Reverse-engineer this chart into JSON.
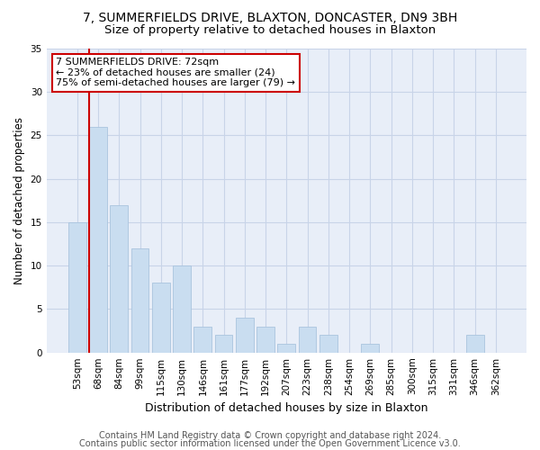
{
  "title1": "7, SUMMERFIELDS DRIVE, BLAXTON, DONCASTER, DN9 3BH",
  "title2": "Size of property relative to detached houses in Blaxton",
  "xlabel": "Distribution of detached houses by size in Blaxton",
  "ylabel": "Number of detached properties",
  "categories": [
    "53sqm",
    "68sqm",
    "84sqm",
    "99sqm",
    "115sqm",
    "130sqm",
    "146sqm",
    "161sqm",
    "177sqm",
    "192sqm",
    "207sqm",
    "223sqm",
    "238sqm",
    "254sqm",
    "269sqm",
    "285sqm",
    "300sqm",
    "315sqm",
    "331sqm",
    "346sqm",
    "362sqm"
  ],
  "values": [
    15,
    26,
    17,
    12,
    8,
    10,
    3,
    2,
    4,
    3,
    1,
    3,
    2,
    0,
    1,
    0,
    0,
    0,
    0,
    2,
    0
  ],
  "bar_color": "#c9ddf0",
  "bar_edge_color": "#aac4de",
  "subject_bar_index": 1,
  "subject_line_color": "#cc0000",
  "ylim": [
    0,
    35
  ],
  "yticks": [
    0,
    5,
    10,
    15,
    20,
    25,
    30,
    35
  ],
  "annotation_line1": "7 SUMMERFIELDS DRIVE: 72sqm",
  "annotation_line2": "← 23% of detached houses are smaller (24)",
  "annotation_line3": "75% of semi-detached houses are larger (79) →",
  "annotation_box_color": "#ffffff",
  "annotation_border_color": "#cc0000",
  "footer1": "Contains HM Land Registry data © Crown copyright and database right 2024.",
  "footer2": "Contains public sector information licensed under the Open Government Licence v3.0.",
  "bg_color": "#ffffff",
  "axes_bg_color": "#e8eef8",
  "grid_color": "#c8d4e8",
  "title1_fontsize": 10,
  "title2_fontsize": 9.5,
  "xlabel_fontsize": 9,
  "ylabel_fontsize": 8.5,
  "tick_fontsize": 7.5,
  "annot_fontsize": 8,
  "footer_fontsize": 7
}
